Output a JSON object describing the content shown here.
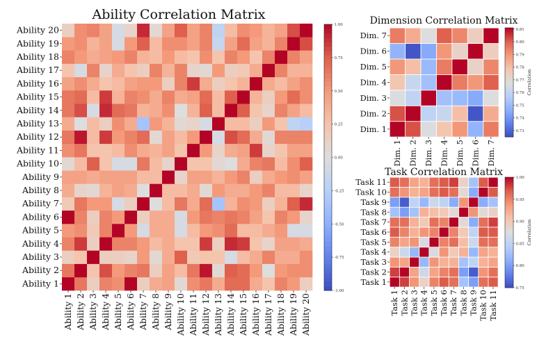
{
  "chart_data": [
    {
      "type": "heatmap",
      "title": "Ability Correlation Matrix",
      "x_labels": [
        "Ability 1",
        "Ability 2",
        "Ability 3",
        "Ability 4",
        "Ability 5",
        "Ability 6",
        "Ability 7",
        "Ability 8",
        "Ability 9",
        "Ability 10",
        "Ability 11",
        "Ability 12",
        "Ability 13",
        "Ability 14",
        "Ability 15",
        "Ability 16",
        "Ability 17",
        "Ability 18",
        "Ability 19",
        "Ability 20"
      ],
      "y_labels_bottom_to_top": [
        "Ability 1",
        "Ability 2",
        "Ability 3",
        "Ability 4",
        "Ability 5",
        "Ability 6",
        "Ability 7",
        "Ability 8",
        "Ability 9",
        "Ability 10",
        "Ability 11",
        "Ability 12",
        "Ability 13",
        "Ability 14",
        "Ability 15",
        "Ability 16",
        "Ability 17",
        "Ability 18",
        "Ability 19",
        "Ability 20"
      ],
      "colormap": "coolwarm",
      "vmin": -1,
      "vmax": 1,
      "colorbar_ticks": [
        "-1.00",
        "-0.75",
        "-0.50",
        "-0.25",
        "0.00",
        "0.25",
        "0.50",
        "0.75",
        "1.00"
      ],
      "colorbar_label": "",
      "values_by_row_bottom_to_top": [
        [
          1,
          0.65,
          0.15,
          0.6,
          0.55,
          1,
          0.15,
          0.4,
          0.45,
          0.05,
          0.55,
          0.65,
          0.4,
          0.7,
          0.7,
          0.4,
          0.25,
          0.6,
          0.5,
          0.15
        ],
        [
          0.65,
          1,
          0.25,
          0.8,
          0.5,
          0.6,
          0.65,
          0.15,
          0.45,
          0.3,
          0.65,
          0.95,
          0.05,
          0.75,
          0.7,
          0.5,
          0.0,
          0.5,
          0.55,
          0.55
        ],
        [
          0.15,
          0.25,
          1,
          0.15,
          0.15,
          0.1,
          0.5,
          0.05,
          0.4,
          0.75,
          0.2,
          0.25,
          0.25,
          -0.05,
          0.3,
          0.4,
          0.6,
          0.4,
          0.4,
          0.55
        ],
        [
          0.6,
          0.85,
          0.15,
          1,
          0.6,
          0.6,
          0.5,
          0.3,
          0.4,
          0.25,
          0.25,
          0.85,
          0.15,
          0.9,
          0.85,
          0.25,
          0.1,
          0.45,
          0.45,
          0.4
        ],
        [
          0.5,
          0.55,
          0.2,
          0.6,
          1,
          0.5,
          -0.05,
          0.4,
          0.4,
          -0.05,
          0.3,
          0.5,
          0.55,
          0.7,
          0.3,
          0.3,
          0.4,
          0.5,
          -0.05,
          -0.05
        ],
        [
          1,
          0.6,
          0.15,
          0.6,
          0.5,
          1,
          0.15,
          0.4,
          0.4,
          -0.05,
          0.5,
          0.65,
          0.6,
          0.65,
          0.6,
          0.45,
          0.25,
          0.6,
          0.5,
          0.1
        ],
        [
          0.2,
          0.65,
          0.5,
          0.5,
          -0.05,
          0.15,
          1,
          0.0,
          0.3,
          0.65,
          0.4,
          0.7,
          -0.35,
          0.35,
          0.55,
          0.5,
          0.15,
          0.35,
          0.75,
          0.9
        ],
        [
          0.4,
          0.1,
          0.05,
          0.35,
          0.45,
          0.4,
          0.0,
          1,
          0.3,
          0.3,
          0.4,
          0.05,
          0.5,
          0.4,
          0.4,
          0.5,
          0.6,
          0.3,
          0.3,
          0.1
        ],
        [
          0.45,
          0.45,
          0.4,
          0.45,
          0.45,
          0.45,
          0.3,
          0.3,
          1,
          0.1,
          0.45,
          0.45,
          0.35,
          0.5,
          0.6,
          0.15,
          0.4,
          0.5,
          0.55,
          0.45
        ],
        [
          0.05,
          0.3,
          0.75,
          0.25,
          -0.05,
          -0.05,
          0.65,
          0.3,
          0.1,
          1,
          0.25,
          0.25,
          0.05,
          0.0,
          0.4,
          0.6,
          0.65,
          0.3,
          0.55,
          0.75
        ],
        [
          0.55,
          0.65,
          0.25,
          0.25,
          0.3,
          0.55,
          0.4,
          0.35,
          0.45,
          0.25,
          1,
          0.5,
          0.1,
          0.4,
          0.45,
          0.85,
          0.1,
          0.25,
          0.45,
          0.45
        ],
        [
          0.65,
          0.95,
          0.3,
          0.85,
          0.5,
          0.6,
          0.7,
          0.05,
          0.45,
          0.3,
          0.5,
          1,
          -0.05,
          0.8,
          0.7,
          0.4,
          0.05,
          0.6,
          0.6,
          0.6
        ],
        [
          0.4,
          0.0,
          0.3,
          0.15,
          0.55,
          0.4,
          -0.35,
          0.5,
          0.35,
          0.05,
          0.1,
          -0.05,
          1,
          0.3,
          0.3,
          0.15,
          0.5,
          0.25,
          -0.2,
          -0.25
        ],
        [
          0.65,
          0.8,
          -0.05,
          0.9,
          0.7,
          0.65,
          0.35,
          0.4,
          0.55,
          0.0,
          0.35,
          0.75,
          0.3,
          1,
          0.75,
          0.25,
          0.1,
          0.6,
          0.45,
          0.3
        ],
        [
          0.65,
          0.7,
          0.3,
          0.85,
          0.35,
          0.6,
          0.55,
          0.4,
          0.6,
          0.4,
          0.45,
          0.7,
          0.3,
          0.75,
          1,
          0.35,
          0.15,
          0.5,
          0.7,
          0.55
        ],
        [
          0.45,
          0.55,
          0.4,
          0.25,
          0.3,
          0.45,
          0.5,
          0.5,
          0.15,
          0.6,
          0.85,
          0.4,
          0.15,
          0.25,
          0.35,
          1,
          0.4,
          0.3,
          0.45,
          0.55
        ],
        [
          0.25,
          -0.05,
          0.6,
          0.1,
          0.4,
          0.25,
          0.15,
          0.6,
          0.35,
          0.6,
          0.1,
          0.05,
          0.5,
          0.15,
          0.2,
          0.4,
          1,
          0.6,
          0.35,
          0.35
        ],
        [
          0.6,
          0.5,
          0.4,
          0.45,
          0.5,
          0.6,
          0.35,
          0.3,
          0.5,
          0.3,
          0.25,
          0.55,
          0.25,
          0.6,
          0.5,
          0.25,
          0.6,
          1,
          0.6,
          0.45
        ],
        [
          0.5,
          0.55,
          0.35,
          0.45,
          -0.05,
          0.5,
          0.75,
          0.3,
          0.55,
          0.55,
          0.45,
          0.6,
          -0.15,
          0.45,
          0.7,
          0.45,
          0.35,
          0.6,
          1,
          0.8
        ],
        [
          0.15,
          0.55,
          0.6,
          0.45,
          -0.05,
          0.1,
          0.9,
          0.05,
          0.45,
          0.75,
          0.45,
          0.6,
          -0.2,
          0.3,
          0.55,
          0.5,
          0.35,
          0.45,
          0.8,
          1
        ]
      ]
    },
    {
      "type": "heatmap",
      "title": "Dimension Correlation Matrix",
      "x_labels": [
        "Dim. 1",
        "Dim. 2",
        "Dim. 3",
        "Dim. 4",
        "Dim. 5",
        "Dim. 6",
        "Dim. 7"
      ],
      "y_labels_bottom_to_top": [
        "Dim. 1",
        "Dim. 2",
        "Dim. 3",
        "Dim. 4",
        "Dim. 5",
        "Dim. 6",
        "Dim. 7"
      ],
      "colormap": "coolwarm",
      "vmin": 0.725,
      "vmax": 0.811,
      "colorbar_ticks": [
        "0.73",
        "0.74",
        "0.75",
        "0.76",
        "0.77",
        "0.78",
        "0.79",
        "0.80",
        "0.81"
      ],
      "colorbar_label": "Correlation",
      "values_by_row_bottom_to_top": [
        [
          0.811,
          0.802,
          0.767,
          0.778,
          0.79,
          0.748,
          0.795
        ],
        [
          0.802,
          0.811,
          0.76,
          0.762,
          0.78,
          0.727,
          0.785
        ],
        [
          0.767,
          0.76,
          0.811,
          0.752,
          0.75,
          0.745,
          0.768
        ],
        [
          0.778,
          0.762,
          0.752,
          0.811,
          0.795,
          0.79,
          0.8
        ],
        [
          0.79,
          0.78,
          0.75,
          0.795,
          0.811,
          0.773,
          0.793
        ],
        [
          0.748,
          0.727,
          0.745,
          0.79,
          0.773,
          0.811,
          0.775
        ],
        [
          0.795,
          0.785,
          0.768,
          0.8,
          0.793,
          0.775,
          0.811
        ]
      ]
    },
    {
      "type": "heatmap",
      "title": "Task Correlation Matrix",
      "x_labels": [
        "Task 1",
        "Task 2",
        "Task 3",
        "Task 4",
        "Task 5",
        "Task 6",
        "Task 7",
        "Task 8",
        "Task 9",
        "Task 10",
        "Task 11"
      ],
      "y_labels_bottom_to_top": [
        "Task 1",
        "Task 2",
        "Task 3",
        "Task 4",
        "Task 5",
        "Task 6",
        "Task 7",
        "Task 8",
        "Task 9",
        "Task 10",
        "Task 11"
      ],
      "colormap": "coolwarm",
      "vmin": 0.75,
      "vmax": 1.0,
      "colorbar_ticks": [
        "0.75",
        "0.80",
        "0.85",
        "0.90",
        "0.95",
        "1.00"
      ],
      "colorbar_label": "Correlation",
      "values_by_row_bottom_to_top": [
        [
          1.0,
          0.98,
          0.94,
          0.89,
          0.95,
          0.97,
          0.96,
          0.83,
          0.8,
          0.96,
          0.97
        ],
        [
          0.98,
          1.0,
          0.93,
          0.86,
          0.93,
          0.95,
          0.96,
          0.8,
          0.76,
          0.94,
          0.96
        ],
        [
          0.94,
          0.93,
          1.0,
          0.82,
          0.94,
          0.92,
          0.92,
          0.83,
          0.85,
          0.92,
          0.93
        ],
        [
          0.89,
          0.86,
          0.82,
          1.0,
          0.87,
          0.94,
          0.9,
          0.92,
          0.82,
          0.93,
          0.92
        ],
        [
          0.95,
          0.93,
          0.94,
          0.87,
          1.0,
          0.95,
          0.96,
          0.91,
          0.86,
          0.96,
          0.96
        ],
        [
          0.97,
          0.95,
          0.92,
          0.94,
          0.95,
          1.0,
          0.95,
          0.9,
          0.85,
          0.97,
          0.97
        ],
        [
          0.96,
          0.96,
          0.92,
          0.9,
          0.96,
          0.95,
          1.0,
          0.88,
          0.81,
          0.96,
          0.98
        ],
        [
          0.83,
          0.8,
          0.83,
          0.92,
          0.91,
          0.9,
          0.88,
          1.0,
          0.94,
          0.88,
          0.89
        ],
        [
          0.8,
          0.76,
          0.85,
          0.82,
          0.86,
          0.85,
          0.81,
          0.94,
          1.0,
          0.81,
          0.83
        ],
        [
          0.96,
          0.94,
          0.92,
          0.93,
          0.96,
          0.97,
          0.96,
          0.88,
          0.81,
          1.0,
          0.97
        ],
        [
          0.97,
          0.96,
          0.93,
          0.92,
          0.96,
          0.97,
          0.98,
          0.89,
          0.83,
          0.97,
          1.0
        ]
      ]
    }
  ]
}
